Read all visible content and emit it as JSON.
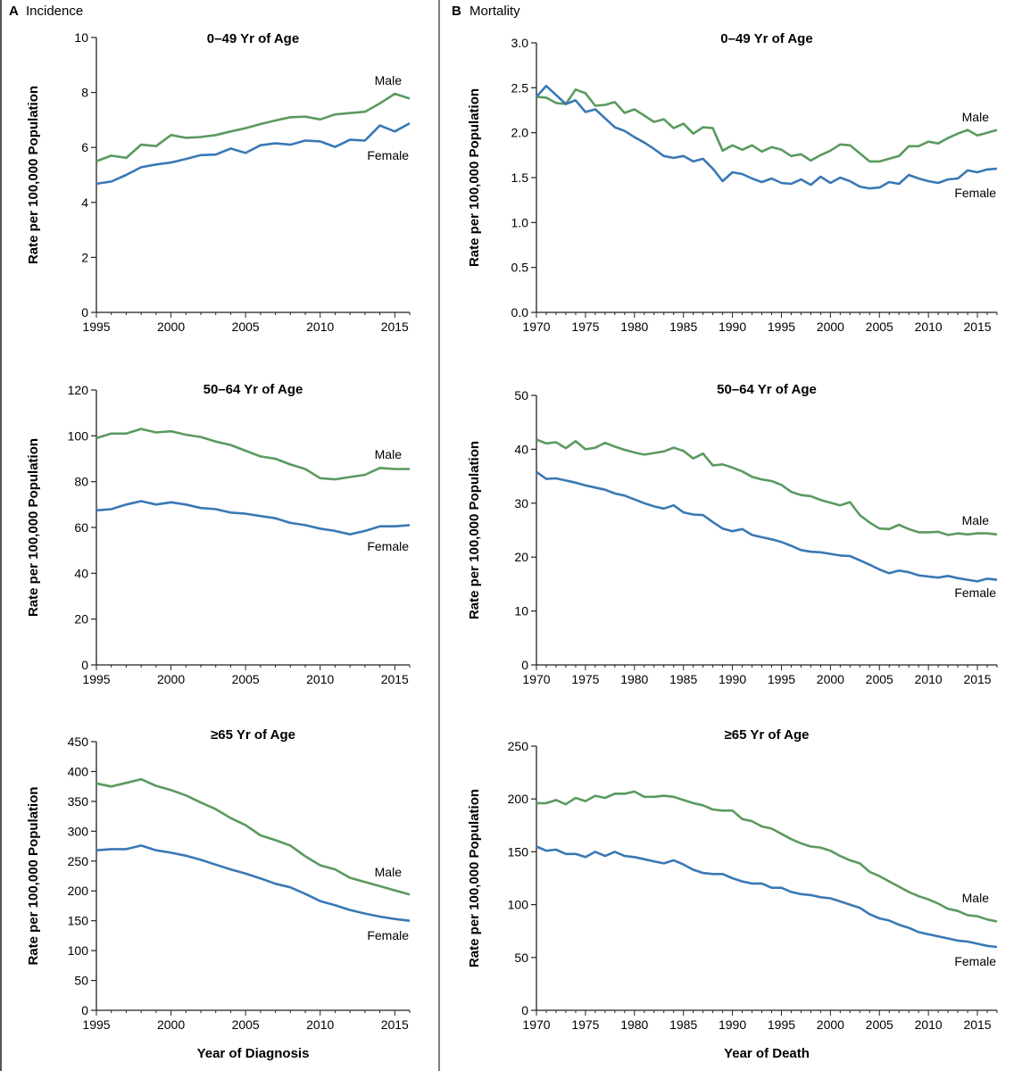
{
  "panels": [
    {
      "letter": "A",
      "name": "Incidence",
      "xlabel": "Year of Diagnosis"
    },
    {
      "letter": "B",
      "name": "Mortality",
      "xlabel": "Year of Death"
    }
  ],
  "ylabel": "Rate per 100,000 Population",
  "colors": {
    "male": "#5a9a5f",
    "female": "#3a78b5",
    "axis": "#222222",
    "divider": "#555555"
  },
  "chart_data": [
    {
      "type": "line",
      "panel": "A",
      "title": "0–49 Yr of Age",
      "xlabel": "",
      "ylabel": "Rate per 100,000 Population",
      "xlim": [
        1995,
        2016
      ],
      "ylim": [
        0,
        10
      ],
      "xticks": [
        1995,
        2000,
        2005,
        2010,
        2015
      ],
      "yticks": [
        0,
        2,
        4,
        6,
        8,
        10
      ],
      "x": [
        1995,
        1996,
        1997,
        1998,
        1999,
        2000,
        2001,
        2002,
        2003,
        2004,
        2005,
        2006,
        2007,
        2008,
        2009,
        2010,
        2011,
        2012,
        2013,
        2014,
        2015,
        2016
      ],
      "series": [
        {
          "name": "Male",
          "values": [
            5.5,
            5.7,
            5.62,
            6.1,
            6.05,
            6.45,
            6.35,
            6.38,
            6.45,
            6.58,
            6.7,
            6.85,
            6.98,
            7.1,
            7.12,
            7.02,
            7.2,
            7.25,
            7.3,
            7.6,
            7.95,
            7.78
          ]
        },
        {
          "name": "Female",
          "values": [
            4.68,
            4.76,
            5.0,
            5.28,
            5.38,
            5.45,
            5.58,
            5.72,
            5.74,
            5.96,
            5.8,
            6.08,
            6.15,
            6.1,
            6.25,
            6.22,
            6.02,
            6.28,
            6.25,
            6.8,
            6.58,
            6.88
          ]
        }
      ]
    },
    {
      "type": "line",
      "panel": "A",
      "title": "50–64 Yr of Age",
      "xlabel": "",
      "ylabel": "Rate per 100,000 Population",
      "xlim": [
        1995,
        2016
      ],
      "ylim": [
        0,
        120
      ],
      "xticks": [
        1995,
        2000,
        2005,
        2010,
        2015
      ],
      "yticks": [
        0,
        20,
        40,
        60,
        80,
        100,
        120
      ],
      "x": [
        1995,
        1996,
        1997,
        1998,
        1999,
        2000,
        2001,
        2002,
        2003,
        2004,
        2005,
        2006,
        2007,
        2008,
        2009,
        2010,
        2011,
        2012,
        2013,
        2014,
        2015,
        2016
      ],
      "series": [
        {
          "name": "Male",
          "values": [
            99,
            101,
            101,
            103,
            101.5,
            102,
            100.5,
            99.5,
            97.5,
            96,
            93.5,
            91,
            90,
            87.5,
            85.5,
            81.5,
            81,
            82,
            83,
            86,
            85.5,
            85.5
          ]
        },
        {
          "name": "Female",
          "values": [
            67.5,
            68,
            70,
            71.5,
            70,
            71,
            70,
            68.5,
            68,
            66.5,
            66,
            65,
            64,
            62,
            61,
            59.5,
            58.5,
            57,
            58.5,
            60.5,
            60.5,
            61
          ]
        }
      ]
    },
    {
      "type": "line",
      "panel": "A",
      "title": "≥65 Yr of Age",
      "xlabel": "Year of Diagnosis",
      "ylabel": "Rate per 100,000 Population",
      "xlim": [
        1995,
        2016
      ],
      "ylim": [
        0,
        450
      ],
      "xticks": [
        1995,
        2000,
        2005,
        2010,
        2015
      ],
      "yticks": [
        0,
        50,
        100,
        150,
        200,
        250,
        300,
        350,
        400,
        450
      ],
      "x": [
        1995,
        1996,
        1997,
        1998,
        1999,
        2000,
        2001,
        2002,
        2003,
        2004,
        2005,
        2006,
        2007,
        2008,
        2009,
        2010,
        2011,
        2012,
        2013,
        2014,
        2015,
        2016
      ],
      "series": [
        {
          "name": "Male",
          "values": [
            380,
            375,
            381,
            387,
            376,
            369,
            360,
            348,
            337,
            322,
            310,
            293,
            285,
            276,
            258,
            243,
            236,
            222,
            215,
            208,
            201,
            194
          ]
        },
        {
          "name": "Female",
          "values": [
            268,
            270,
            270,
            276,
            268,
            264,
            259,
            252,
            244,
            236,
            229,
            221,
            212,
            206,
            195,
            183,
            176,
            168,
            162,
            157,
            153,
            150
          ]
        }
      ]
    },
    {
      "type": "line",
      "panel": "B",
      "title": "0–49 Yr of Age",
      "xlabel": "",
      "ylabel": "Rate per 100,000 Population",
      "xlim": [
        1970,
        2017
      ],
      "ylim": [
        0,
        3.0
      ],
      "xticks": [
        1970,
        1975,
        1980,
        1985,
        1990,
        1995,
        2000,
        2005,
        2010,
        2015
      ],
      "yticks": [
        0.0,
        0.5,
        1.0,
        1.5,
        2.0,
        2.5,
        3.0
      ],
      "x": [
        1970,
        1971,
        1972,
        1973,
        1974,
        1975,
        1976,
        1977,
        1978,
        1979,
        1980,
        1981,
        1982,
        1983,
        1984,
        1985,
        1986,
        1987,
        1988,
        1989,
        1990,
        1991,
        1992,
        1993,
        1994,
        1995,
        1996,
        1997,
        1998,
        1999,
        2000,
        2001,
        2002,
        2003,
        2004,
        2005,
        2006,
        2007,
        2008,
        2009,
        2010,
        2011,
        2012,
        2013,
        2014,
        2015,
        2016,
        2017
      ],
      "series": [
        {
          "name": "Male",
          "values": [
            2.4,
            2.39,
            2.33,
            2.32,
            2.48,
            2.44,
            2.3,
            2.31,
            2.34,
            2.22,
            2.26,
            2.19,
            2.12,
            2.15,
            2.05,
            2.1,
            1.99,
            2.06,
            2.05,
            1.8,
            1.86,
            1.81,
            1.86,
            1.79,
            1.84,
            1.81,
            1.74,
            1.76,
            1.69,
            1.75,
            1.8,
            1.87,
            1.86,
            1.77,
            1.68,
            1.68,
            1.71,
            1.74,
            1.85,
            1.85,
            1.9,
            1.88,
            1.94,
            1.99,
            2.03,
            1.97,
            2.0,
            2.03
          ]
        },
        {
          "name": "Female",
          "values": [
            2.4,
            2.52,
            2.42,
            2.32,
            2.36,
            2.23,
            2.26,
            2.16,
            2.06,
            2.02,
            1.95,
            1.89,
            1.82,
            1.74,
            1.72,
            1.74,
            1.68,
            1.71,
            1.6,
            1.46,
            1.56,
            1.54,
            1.49,
            1.45,
            1.49,
            1.44,
            1.43,
            1.48,
            1.42,
            1.51,
            1.44,
            1.5,
            1.46,
            1.4,
            1.38,
            1.39,
            1.45,
            1.43,
            1.53,
            1.49,
            1.46,
            1.44,
            1.48,
            1.49,
            1.58,
            1.56,
            1.59,
            1.6
          ]
        }
      ]
    },
    {
      "type": "line",
      "panel": "B",
      "title": "50–64 Yr of Age",
      "xlabel": "",
      "ylabel": "Rate per 100,000 Population",
      "xlim": [
        1970,
        2017
      ],
      "ylim": [
        0,
        50
      ],
      "xticks": [
        1970,
        1975,
        1980,
        1985,
        1990,
        1995,
        2000,
        2005,
        2010,
        2015
      ],
      "yticks": [
        0,
        10,
        20,
        30,
        40,
        50
      ],
      "x": [
        1970,
        1971,
        1972,
        1973,
        1974,
        1975,
        1976,
        1977,
        1978,
        1979,
        1980,
        1981,
        1982,
        1983,
        1984,
        1985,
        1986,
        1987,
        1988,
        1989,
        1990,
        1991,
        1992,
        1993,
        1994,
        1995,
        1996,
        1997,
        1998,
        1999,
        2000,
        2001,
        2002,
        2003,
        2004,
        2005,
        2006,
        2007,
        2008,
        2009,
        2010,
        2011,
        2012,
        2013,
        2014,
        2015,
        2016,
        2017
      ],
      "series": [
        {
          "name": "Male",
          "values": [
            41.8,
            41.1,
            41.3,
            40.2,
            41.5,
            40,
            40.3,
            41.2,
            40.5,
            39.9,
            39.4,
            39,
            39.3,
            39.6,
            40.3,
            39.7,
            38.3,
            39.2,
            37,
            37.2,
            36.6,
            35.9,
            34.9,
            34.4,
            34.1,
            33.4,
            32.1,
            31.5,
            31.3,
            30.6,
            30.1,
            29.6,
            30.2,
            27.8,
            26.4,
            25.3,
            25.2,
            26,
            25.2,
            24.6,
            24.6,
            24.7,
            24.1,
            24.4,
            24.2,
            24.4,
            24.4,
            24.2
          ]
        },
        {
          "name": "Female",
          "values": [
            35.8,
            34.5,
            34.6,
            34.2,
            33.8,
            33.3,
            32.9,
            32.5,
            31.8,
            31.4,
            30.7,
            30,
            29.4,
            29,
            29.6,
            28.3,
            27.9,
            27.8,
            26.5,
            25.3,
            24.8,
            25.2,
            24.1,
            23.7,
            23.3,
            22.8,
            22.1,
            21.3,
            21,
            20.9,
            20.6,
            20.3,
            20.2,
            19.4,
            18.6,
            17.7,
            17,
            17.5,
            17.2,
            16.6,
            16.4,
            16.2,
            16.5,
            16.1,
            15.8,
            15.5,
            16,
            15.8
          ]
        }
      ]
    },
    {
      "type": "line",
      "panel": "B",
      "title": "≥65 Yr of Age",
      "xlabel": "Year of Death",
      "ylabel": "Rate per 100,000 Population",
      "xlim": [
        1970,
        2017
      ],
      "ylim": [
        0,
        250
      ],
      "xticks": [
        1970,
        1975,
        1980,
        1985,
        1990,
        1995,
        2000,
        2005,
        2010,
        2015
      ],
      "yticks": [
        0,
        50,
        100,
        150,
        200,
        250
      ],
      "x": [
        1970,
        1971,
        1972,
        1973,
        1974,
        1975,
        1976,
        1977,
        1978,
        1979,
        1980,
        1981,
        1982,
        1983,
        1984,
        1985,
        1986,
        1987,
        1988,
        1989,
        1990,
        1991,
        1992,
        1993,
        1994,
        1995,
        1996,
        1997,
        1998,
        1999,
        2000,
        2001,
        2002,
        2003,
        2004,
        2005,
        2006,
        2007,
        2008,
        2009,
        2010,
        2011,
        2012,
        2013,
        2014,
        2015,
        2016,
        2017
      ],
      "series": [
        {
          "name": "Male",
          "values": [
            196,
            196,
            199,
            195,
            201,
            198,
            203,
            201,
            205,
            205,
            207,
            202,
            202,
            203,
            202,
            199,
            196,
            194,
            190,
            189,
            189,
            181,
            179,
            174,
            172,
            167,
            162,
            158,
            155,
            154,
            151,
            146,
            142,
            139,
            131,
            127,
            122,
            117,
            112,
            108,
            105,
            101,
            96,
            94,
            90,
            89,
            86,
            84
          ]
        },
        {
          "name": "Female",
          "values": [
            155,
            151,
            152,
            148,
            148,
            145,
            150,
            146,
            150,
            146,
            145,
            143,
            141,
            139,
            142,
            138,
            133,
            130,
            129,
            129,
            125,
            122,
            120,
            120,
            116,
            116,
            112,
            110,
            109,
            107,
            106,
            103,
            100,
            97,
            91,
            87,
            85,
            81,
            78,
            74,
            72,
            70,
            68,
            66,
            65,
            63,
            61,
            60
          ]
        }
      ]
    }
  ]
}
